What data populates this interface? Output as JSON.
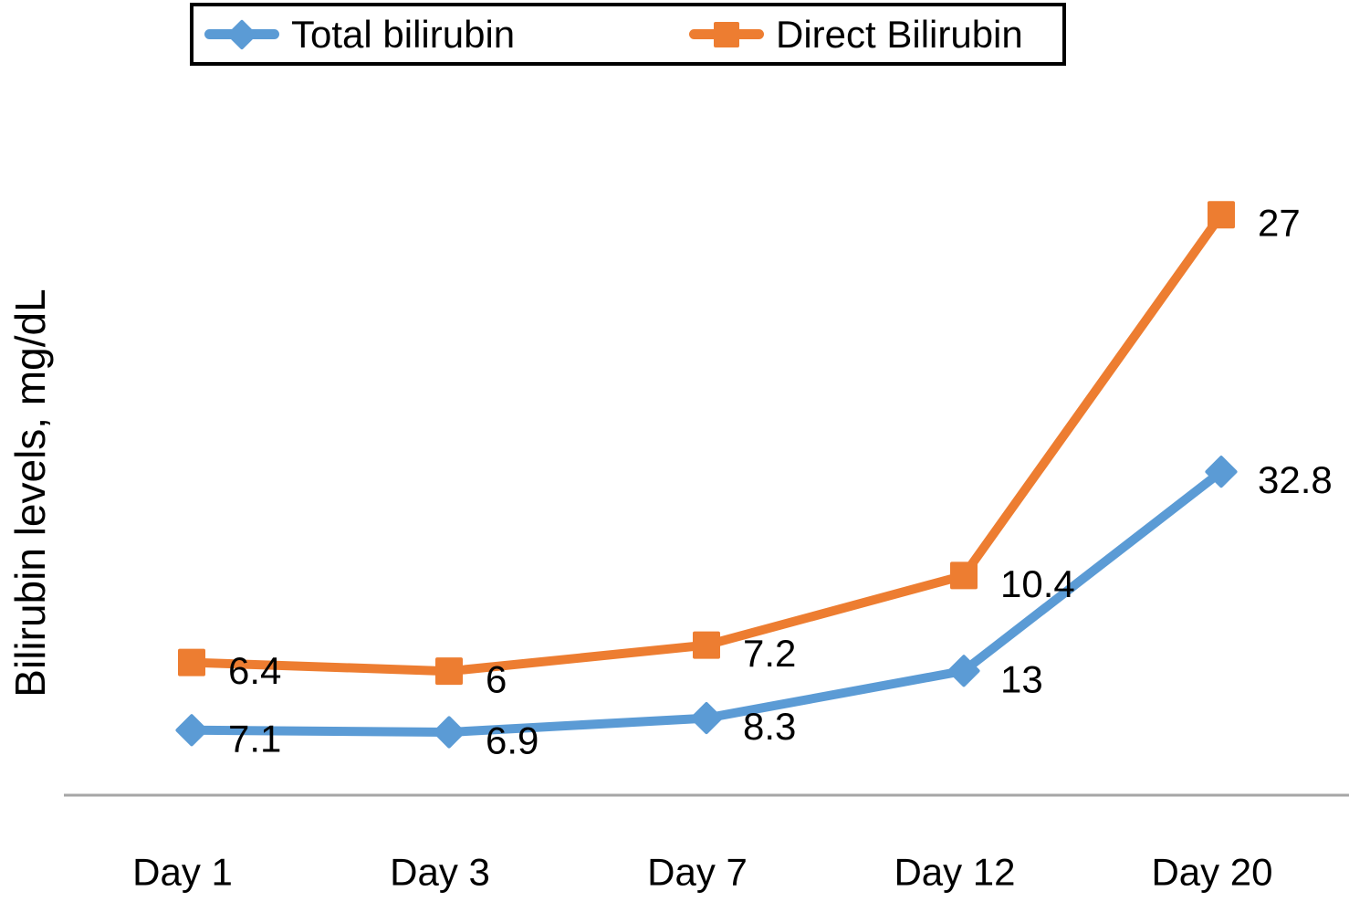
{
  "figure": {
    "background_color": "#ffffff",
    "text_color": "#000000",
    "axis_line_color": "#a6a6a6"
  },
  "legend": {
    "position": "top",
    "border_color": "#000000",
    "items": [
      {
        "label": "Total bilirubin",
        "color": "#5B9BD5",
        "marker": "diamond"
      },
      {
        "label": "Direct Bilirubin",
        "color": "#ED7D31",
        "marker": "square"
      }
    ]
  },
  "chart_data": {
    "type": "line",
    "title": "",
    "xlabel": "",
    "ylabel": "Bilirubin levels, mg/dL",
    "categories": [
      "Day 1",
      "Day 3",
      "Day 7",
      "Day 12",
      "Day 20"
    ],
    "series": [
      {
        "name": "Total bilirubin",
        "color": "#5B9BD5",
        "marker": "diamond",
        "values": [
          7.1,
          6.9,
          8.3,
          13,
          32.8
        ],
        "data_labels": [
          "7.1",
          "6.9",
          "8.3",
          "13",
          "32.8"
        ],
        "ylim_hint": [
          0,
          67
        ]
      },
      {
        "name": "Direct Bilirubin",
        "color": "#ED7D31",
        "marker": "square",
        "values": [
          6.4,
          6,
          7.2,
          10.4,
          27
        ],
        "data_labels": [
          "6.4",
          "6",
          "7.2",
          "10.4",
          "27"
        ],
        "ylim_hint": [
          0,
          31
        ]
      }
    ],
    "grid": false,
    "y_axis_ticks_visible": false,
    "x_axis_line_visible": true,
    "legend_position": "top",
    "data_labels_visible": true
  }
}
